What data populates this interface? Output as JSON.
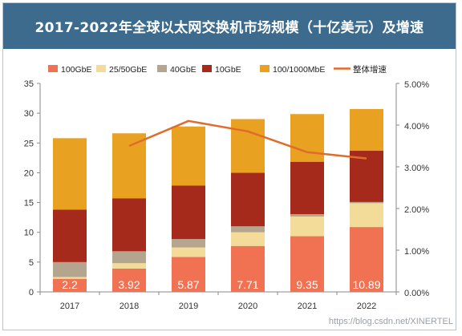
{
  "chart_data": {
    "type": "bar",
    "stacked": true,
    "title": "2017-2022年全球以太网交换机市场规模（十亿美元）及增速",
    "categories": [
      "2017",
      "2018",
      "2019",
      "2020",
      "2021",
      "2022"
    ],
    "series": [
      {
        "name": "100GbE",
        "color": "#f07252",
        "values": [
          2.2,
          3.92,
          5.87,
          7.71,
          9.35,
          10.89
        ],
        "labels": [
          "2.2",
          "3.92",
          "5.87",
          "7.71",
          "9.35",
          "10.89"
        ]
      },
      {
        "name": "25/50GbE",
        "color": "#f3dc99",
        "values": [
          0.3,
          0.9,
          1.6,
          2.3,
          3.3,
          4.0
        ]
      },
      {
        "name": "40GbE",
        "color": "#b4a58e",
        "values": [
          2.5,
          2.0,
          1.4,
          1.0,
          0.4,
          0.2
        ]
      },
      {
        "name": "10GbE",
        "color": "#a52a1c",
        "values": [
          8.8,
          8.9,
          9.0,
          9.0,
          8.8,
          8.6
        ]
      },
      {
        "name": "100/1000MbE",
        "color": "#e9a122",
        "values": [
          12.0,
          10.9,
          9.9,
          9.0,
          8.0,
          7.0
        ]
      }
    ],
    "line": {
      "name": "整体增速",
      "color": "#e06c2b",
      "x": [
        "2018",
        "2019",
        "2020",
        "2021",
        "2022"
      ],
      "values": [
        3.5,
        4.1,
        3.85,
        3.35,
        3.2
      ],
      "unit": "%"
    },
    "ylim": [
      0,
      35
    ],
    "yticks": [
      "0",
      "5",
      "10",
      "15",
      "20",
      "25",
      "30",
      "35"
    ],
    "y2lim": [
      0,
      5
    ],
    "y2ticks": [
      "0.00%",
      "1.00%",
      "2.00%",
      "3.00%",
      "4.00%",
      "5.00%"
    ],
    "legend_position": "top",
    "grid": false
  },
  "watermark": "https://blog.csdn.net/XINERTEL"
}
